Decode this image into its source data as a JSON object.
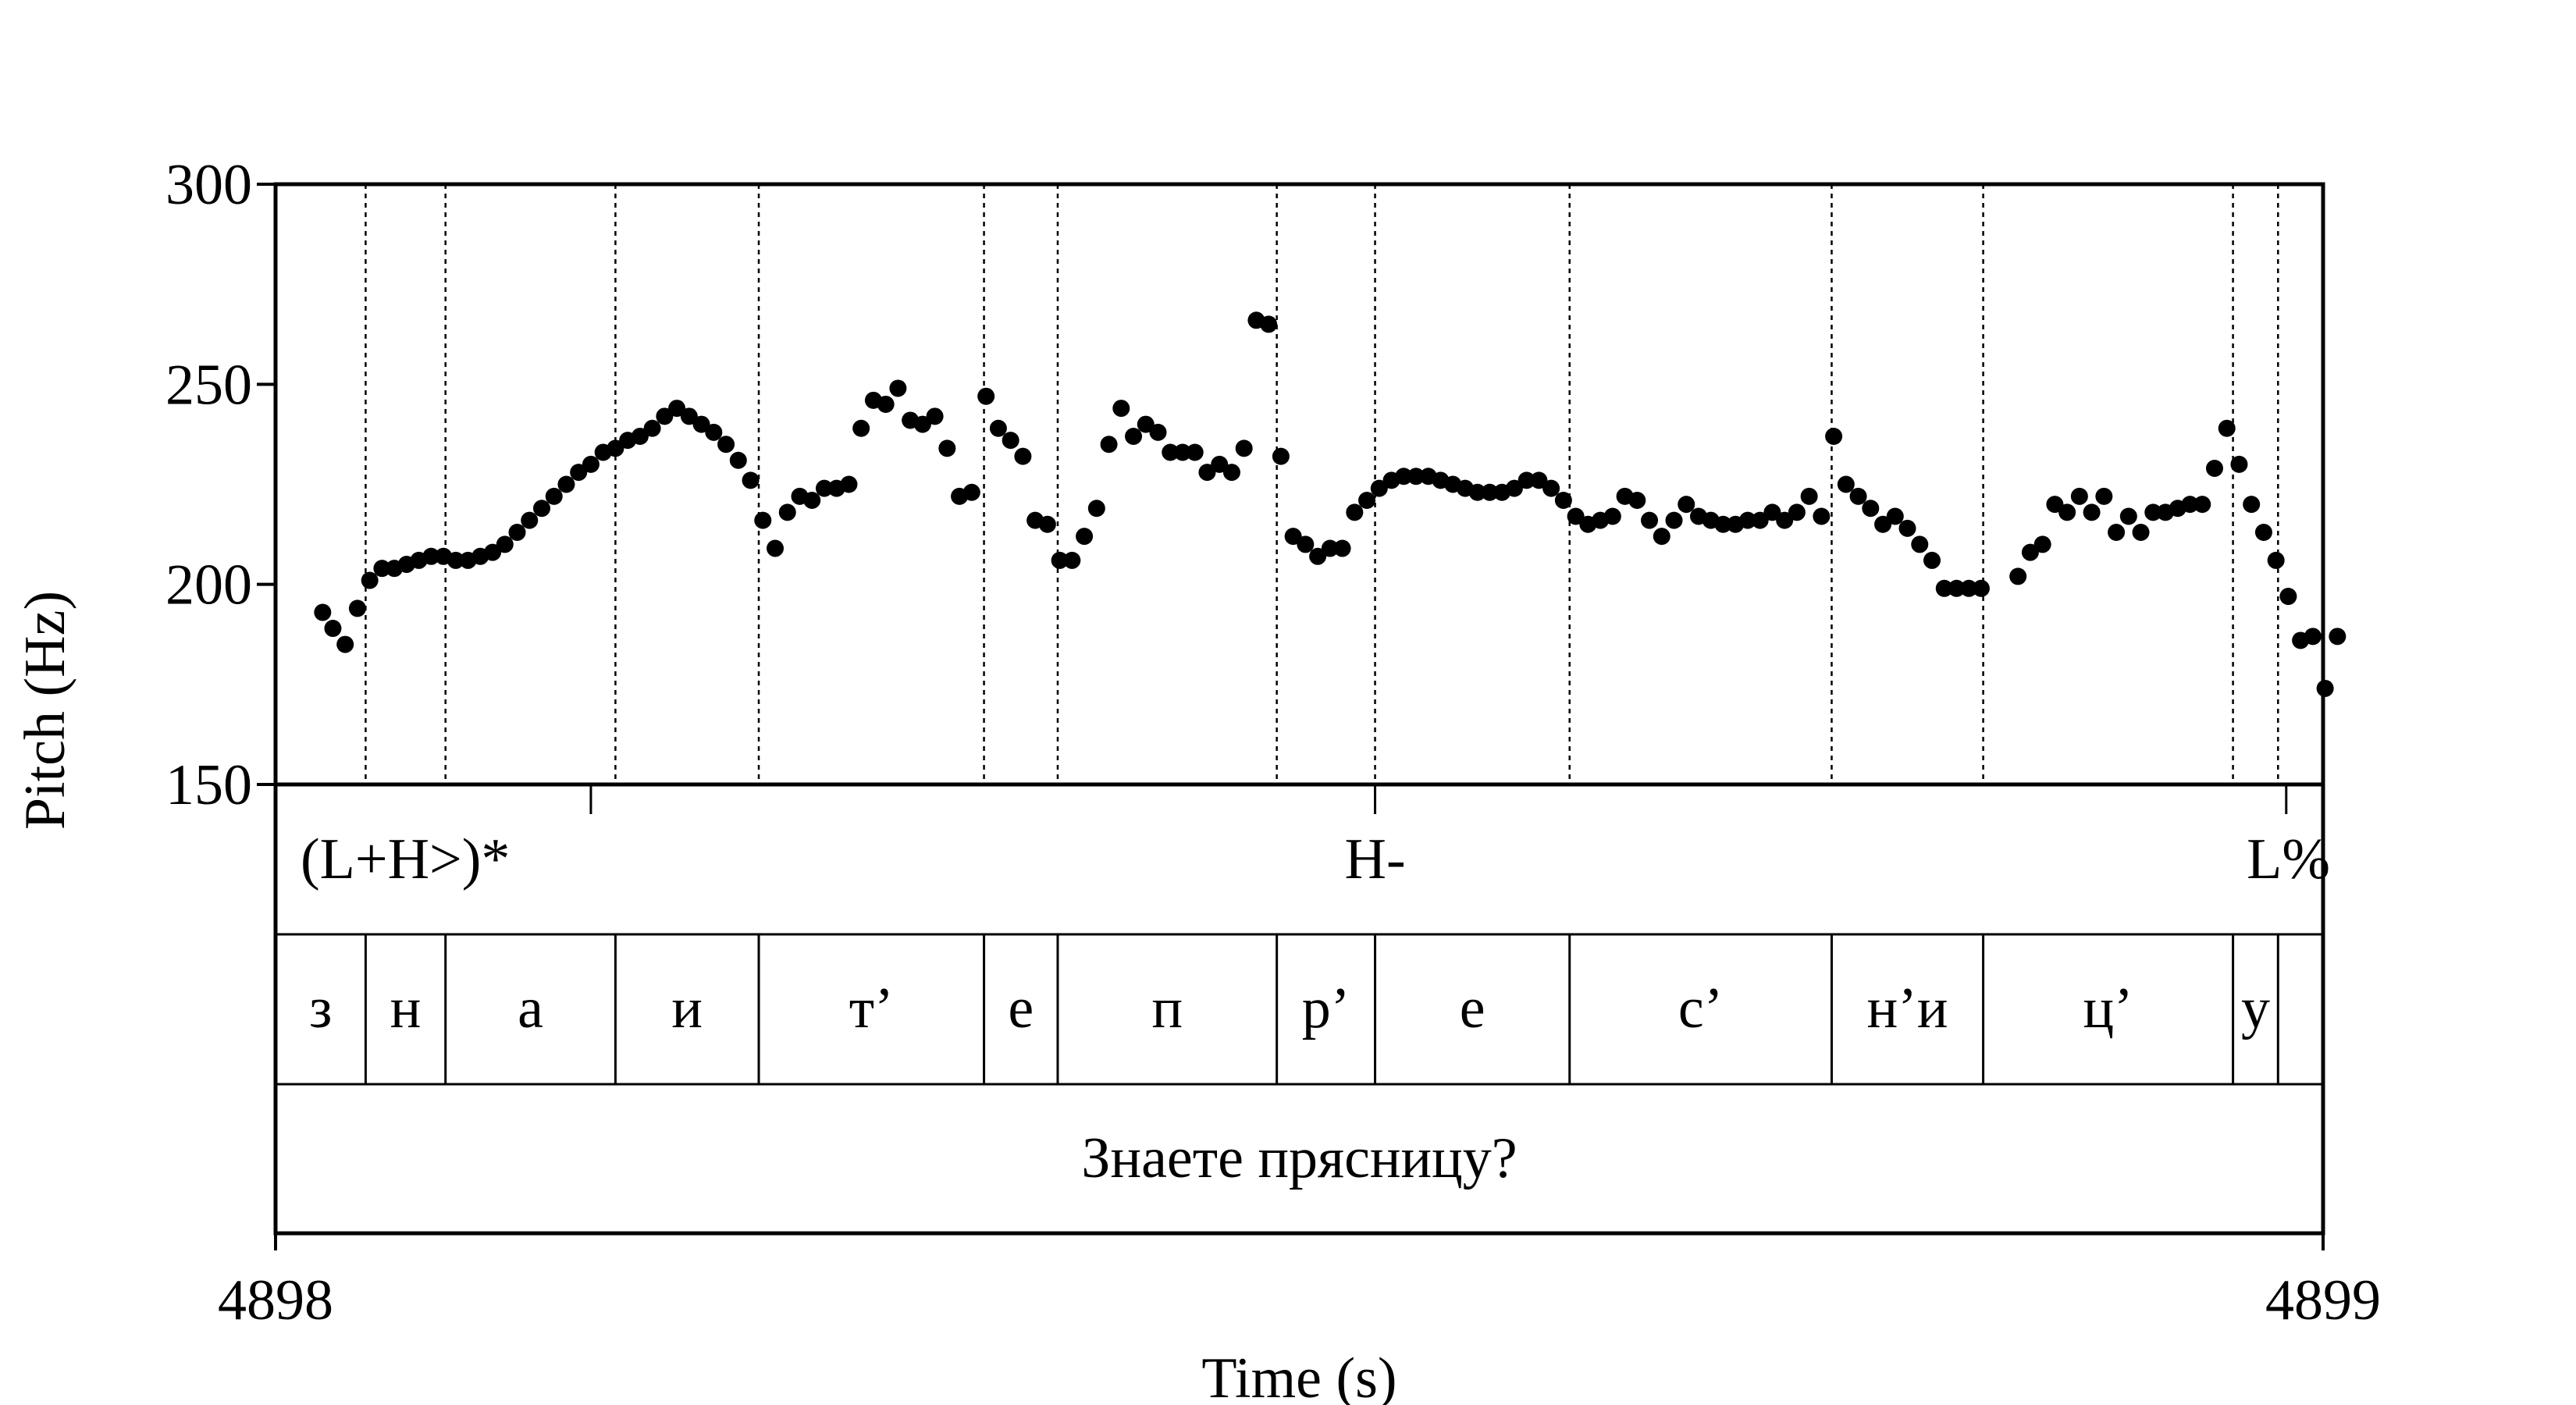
{
  "chart_data": {
    "type": "scatter",
    "xlabel": "Time (s)",
    "ylabel": "Pitch (Hz)",
    "xlim": [
      4898,
      4899
    ],
    "ylim": [
      150,
      300
    ],
    "x_tick_labels": [
      "4898",
      "4899"
    ],
    "y_tick_values": [
      150,
      200,
      250,
      300
    ],
    "y_tick_labels": [
      "150",
      "200",
      "250",
      "300"
    ],
    "grid": false,
    "legend": "none",
    "marker_color": "#000000",
    "boundaries": [
      0.044,
      0.083,
      0.166,
      0.236,
      0.346,
      0.382,
      0.489,
      0.537,
      0.632,
      0.76,
      0.834,
      0.956,
      0.978
    ],
    "tones": [
      {
        "time": 0.154,
        "label": "(L+H>)*"
      },
      {
        "time": 0.537,
        "label": "H-"
      },
      {
        "time": 0.982,
        "label": "L%"
      }
    ],
    "segments": [
      {
        "label": "з"
      },
      {
        "label": "н"
      },
      {
        "label": "а"
      },
      {
        "label": "и"
      },
      {
        "label": "т’"
      },
      {
        "label": "е"
      },
      {
        "label": "п"
      },
      {
        "label": "р’"
      },
      {
        "label": "е"
      },
      {
        "label": "с’"
      },
      {
        "label": "н’и"
      },
      {
        "label": "ц’"
      },
      {
        "label": "у"
      }
    ],
    "utterance": "Знаете прясницу?",
    "points": [
      [
        0.023,
        193
      ],
      [
        0.028,
        189
      ],
      [
        0.034,
        185
      ],
      [
        0.04,
        194
      ],
      [
        0.046,
        201
      ],
      [
        0.052,
        204
      ],
      [
        0.058,
        204
      ],
      [
        0.064,
        205
      ],
      [
        0.07,
        206
      ],
      [
        0.076,
        207
      ],
      [
        0.082,
        207
      ],
      [
        0.088,
        206
      ],
      [
        0.094,
        206
      ],
      [
        0.1,
        207
      ],
      [
        0.106,
        208
      ],
      [
        0.112,
        210
      ],
      [
        0.118,
        213
      ],
      [
        0.124,
        216
      ],
      [
        0.13,
        219
      ],
      [
        0.136,
        222
      ],
      [
        0.142,
        225
      ],
      [
        0.148,
        228
      ],
      [
        0.154,
        230
      ],
      [
        0.16,
        233
      ],
      [
        0.166,
        234
      ],
      [
        0.172,
        236
      ],
      [
        0.178,
        237
      ],
      [
        0.184,
        239
      ],
      [
        0.19,
        242
      ],
      [
        0.196,
        244
      ],
      [
        0.202,
        242
      ],
      [
        0.208,
        240
      ],
      [
        0.214,
        238
      ],
      [
        0.22,
        235
      ],
      [
        0.226,
        231
      ],
      [
        0.232,
        226
      ],
      [
        0.238,
        216
      ],
      [
        0.244,
        209
      ],
      [
        0.25,
        218
      ],
      [
        0.256,
        222
      ],
      [
        0.262,
        221
      ],
      [
        0.268,
        224
      ],
      [
        0.274,
        224
      ],
      [
        0.28,
        225
      ],
      [
        0.286,
        239
      ],
      [
        0.292,
        246
      ],
      [
        0.298,
        245
      ],
      [
        0.304,
        249
      ],
      [
        0.31,
        241
      ],
      [
        0.316,
        240
      ],
      [
        0.322,
        242
      ],
      [
        0.328,
        234
      ],
      [
        0.334,
        222
      ],
      [
        0.34,
        223
      ],
      [
        0.347,
        247
      ],
      [
        0.353,
        239
      ],
      [
        0.359,
        236
      ],
      [
        0.365,
        232
      ],
      [
        0.371,
        216
      ],
      [
        0.377,
        215
      ],
      [
        0.383,
        206
      ],
      [
        0.389,
        206
      ],
      [
        0.395,
        212
      ],
      [
        0.401,
        219
      ],
      [
        0.407,
        235
      ],
      [
        0.413,
        244
      ],
      [
        0.419,
        237
      ],
      [
        0.425,
        240
      ],
      [
        0.431,
        238
      ],
      [
        0.437,
        233
      ],
      [
        0.443,
        233
      ],
      [
        0.449,
        233
      ],
      [
        0.455,
        228
      ],
      [
        0.461,
        230
      ],
      [
        0.467,
        228
      ],
      [
        0.473,
        234
      ],
      [
        0.479,
        266
      ],
      [
        0.485,
        265
      ],
      [
        0.491,
        232
      ],
      [
        0.497,
        212
      ],
      [
        0.503,
        210
      ],
      [
        0.509,
        207
      ],
      [
        0.515,
        209
      ],
      [
        0.521,
        209
      ],
      [
        0.527,
        218
      ],
      [
        0.533,
        221
      ],
      [
        0.539,
        224
      ],
      [
        0.545,
        226
      ],
      [
        0.551,
        227
      ],
      [
        0.557,
        227
      ],
      [
        0.563,
        227
      ],
      [
        0.569,
        226
      ],
      [
        0.575,
        225
      ],
      [
        0.581,
        224
      ],
      [
        0.587,
        223
      ],
      [
        0.593,
        223
      ],
      [
        0.599,
        223
      ],
      [
        0.605,
        224
      ],
      [
        0.611,
        226
      ],
      [
        0.617,
        226
      ],
      [
        0.623,
        224
      ],
      [
        0.629,
        221
      ],
      [
        0.635,
        217
      ],
      [
        0.641,
        215
      ],
      [
        0.647,
        216
      ],
      [
        0.653,
        217
      ],
      [
        0.659,
        222
      ],
      [
        0.665,
        221
      ],
      [
        0.671,
        216
      ],
      [
        0.677,
        212
      ],
      [
        0.683,
        216
      ],
      [
        0.689,
        220
      ],
      [
        0.695,
        217
      ],
      [
        0.701,
        216
      ],
      [
        0.707,
        215
      ],
      [
        0.713,
        215
      ],
      [
        0.719,
        216
      ],
      [
        0.725,
        216
      ],
      [
        0.731,
        218
      ],
      [
        0.737,
        216
      ],
      [
        0.743,
        218
      ],
      [
        0.749,
        222
      ],
      [
        0.755,
        217
      ],
      [
        0.761,
        237
      ],
      [
        0.767,
        225
      ],
      [
        0.773,
        222
      ],
      [
        0.779,
        219
      ],
      [
        0.785,
        215
      ],
      [
        0.791,
        217
      ],
      [
        0.797,
        214
      ],
      [
        0.803,
        210
      ],
      [
        0.809,
        206
      ],
      [
        0.815,
        199
      ],
      [
        0.821,
        199
      ],
      [
        0.827,
        199
      ],
      [
        0.833,
        199
      ],
      [
        0.851,
        202
      ],
      [
        0.857,
        208
      ],
      [
        0.863,
        210
      ],
      [
        0.869,
        220
      ],
      [
        0.875,
        218
      ],
      [
        0.881,
        222
      ],
      [
        0.887,
        218
      ],
      [
        0.893,
        222
      ],
      [
        0.899,
        213
      ],
      [
        0.905,
        217
      ],
      [
        0.911,
        213
      ],
      [
        0.917,
        218
      ],
      [
        0.923,
        218
      ],
      [
        0.929,
        219
      ],
      [
        0.935,
        220
      ],
      [
        0.941,
        220
      ],
      [
        0.947,
        229
      ],
      [
        0.953,
        239
      ],
      [
        0.959,
        230
      ],
      [
        0.965,
        220
      ],
      [
        0.971,
        213
      ],
      [
        0.977,
        206
      ],
      [
        0.983,
        197
      ],
      [
        0.989,
        186
      ],
      [
        0.995,
        187
      ],
      [
        1.001,
        174
      ],
      [
        1.007,
        187
      ]
    ]
  }
}
